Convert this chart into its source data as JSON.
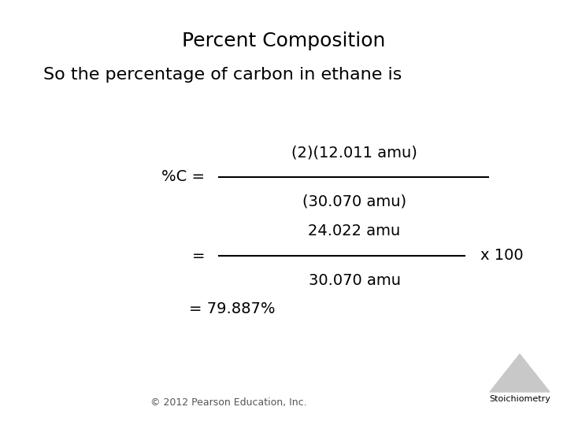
{
  "title": "Percent Composition",
  "subtitle": "So the percentage of carbon in ethane is",
  "label_pc": "%C =",
  "numerator1": "(2)(12.011 amu)",
  "denominator1": "(30.070 amu)",
  "equals2": "=",
  "numerator2": "24.022 amu",
  "denominator2": "30.070 amu",
  "x100": "x 100",
  "result": "= 79.887%",
  "copyright": "© 2012 Pearson Education, Inc.",
  "stoich_label": "Stoichiometry",
  "bg_color": "#ffffff",
  "text_color": "#000000",
  "title_fontsize": 18,
  "subtitle_fontsize": 16,
  "body_fontsize": 14,
  "small_fontsize": 9,
  "frac_line_color": "#000000"
}
